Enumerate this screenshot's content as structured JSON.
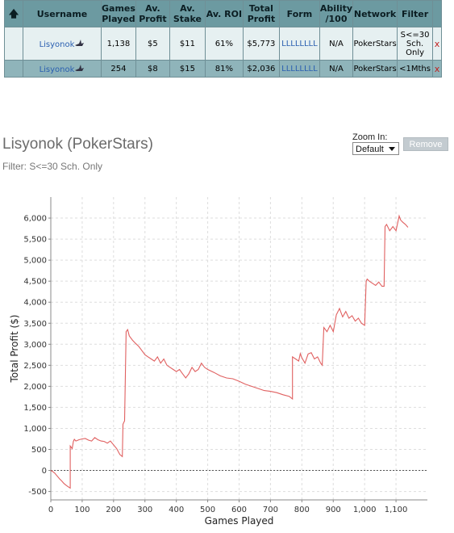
{
  "table": {
    "headers": [
      "Username",
      "Games Played",
      "Av. Profit",
      "Av. Stake",
      "Av. ROI",
      "Total Profit",
      "Form",
      "Ability /100",
      "Network",
      "Filter"
    ],
    "rows": [
      {
        "username": "Lisyonok",
        "games_played": "1,138",
        "av_profit": "$5",
        "av_stake": "$11",
        "av_roi": "61%",
        "total_profit": "$5,773",
        "form": "LLLLLLLL",
        "ability": "N/A",
        "network": "PokerStars",
        "filter": "S<=30 Sch. Only",
        "remove": "x"
      },
      {
        "username": "Lisyonok",
        "games_played": "254",
        "av_profit": "$8",
        "av_stake": "$15",
        "av_roi": "81%",
        "total_profit": "$2,036",
        "form": "LLLLLLLL",
        "ability": "N/A",
        "network": "PokerStars",
        "filter": "<1Mths",
        "remove": "x"
      }
    ]
  },
  "graph": {
    "title": "Lisyonok (PokerStars)",
    "filter_label": "Filter: S<=30 Sch. Only",
    "zoom_label": "Zoom In:",
    "zoom_value": "Default",
    "remove_label": "Remove"
  },
  "chart_data": {
    "type": "line",
    "xlabel": "Games Played",
    "ylabel": "Total Profit ($)",
    "xlim": [
      0,
      1200
    ],
    "ylim": [
      -700,
      6500
    ],
    "x_ticks": [
      0,
      100,
      200,
      300,
      400,
      500,
      600,
      700,
      800,
      900,
      1000,
      1100
    ],
    "x_tick_labels": [
      "0",
      "100",
      "200",
      "300",
      "400",
      "500",
      "600",
      "700",
      "800",
      "900",
      "1,000",
      "1,100"
    ],
    "y_ticks": [
      -500,
      0,
      500,
      1000,
      1500,
      2000,
      2500,
      3000,
      3500,
      4000,
      4500,
      5000,
      5500,
      6000
    ],
    "y_tick_labels": [
      "-500",
      "0",
      "500",
      "1,000",
      "1,500",
      "2,000",
      "2,500",
      "3,000",
      "3,500",
      "4,000",
      "4,500",
      "5,000",
      "5,500",
      "6,000"
    ],
    "grid": true,
    "zero_line": true,
    "line_color": "#e06060",
    "series": [
      {
        "x": [
          0,
          5,
          12,
          20,
          28,
          35,
          42,
          50,
          58,
          62,
          62,
          68,
          72,
          75,
          80,
          90,
          100,
          110,
          120,
          130,
          140,
          150,
          160,
          170,
          180,
          190,
          200,
          210,
          220,
          228,
          230,
          235,
          240,
          245,
          250,
          260,
          270,
          280,
          290,
          300,
          310,
          320,
          330,
          340,
          350,
          360,
          370,
          380,
          390,
          400,
          410,
          420,
          430,
          440,
          450,
          460,
          470,
          480,
          490,
          500,
          520,
          540,
          560,
          580,
          600,
          620,
          640,
          660,
          680,
          700,
          720,
          740,
          760,
          770,
          770,
          780,
          790,
          795,
          800,
          810,
          820,
          830,
          840,
          850,
          860,
          865,
          870,
          880,
          890,
          900,
          910,
          920,
          930,
          940,
          950,
          960,
          970,
          980,
          990,
          1000,
          1005,
          1008,
          1015,
          1025,
          1035,
          1045,
          1055,
          1062,
          1065,
          1070,
          1080,
          1090,
          1100,
          1110,
          1115,
          1122,
          1130,
          1138
        ],
        "y": [
          0,
          -20,
          -60,
          -130,
          -200,
          -250,
          -310,
          -360,
          -400,
          -420,
          580,
          520,
          690,
          740,
          700,
          730,
          750,
          760,
          720,
          700,
          780,
          730,
          700,
          690,
          650,
          700,
          610,
          520,
          380,
          330,
          1100,
          1180,
          3300,
          3350,
          3200,
          3100,
          3020,
          2950,
          2850,
          2750,
          2700,
          2650,
          2600,
          2700,
          2550,
          2650,
          2500,
          2450,
          2400,
          2350,
          2400,
          2300,
          2200,
          2300,
          2450,
          2350,
          2400,
          2550,
          2450,
          2400,
          2330,
          2250,
          2200,
          2180,
          2120,
          2050,
          2000,
          1950,
          1900,
          1880,
          1850,
          1800,
          1760,
          1700,
          2700,
          2650,
          2600,
          2780,
          2680,
          2550,
          2770,
          2800,
          2650,
          2700,
          2550,
          2500,
          3400,
          3300,
          3450,
          3300,
          3700,
          3850,
          3650,
          3780,
          3620,
          3680,
          3550,
          3620,
          3500,
          3450,
          4500,
          4550,
          4500,
          4450,
          4400,
          4480,
          4380,
          4380,
          5800,
          5850,
          5700,
          5800,
          5700,
          6050,
          5950,
          5900,
          5850,
          5780
        ]
      }
    ]
  }
}
